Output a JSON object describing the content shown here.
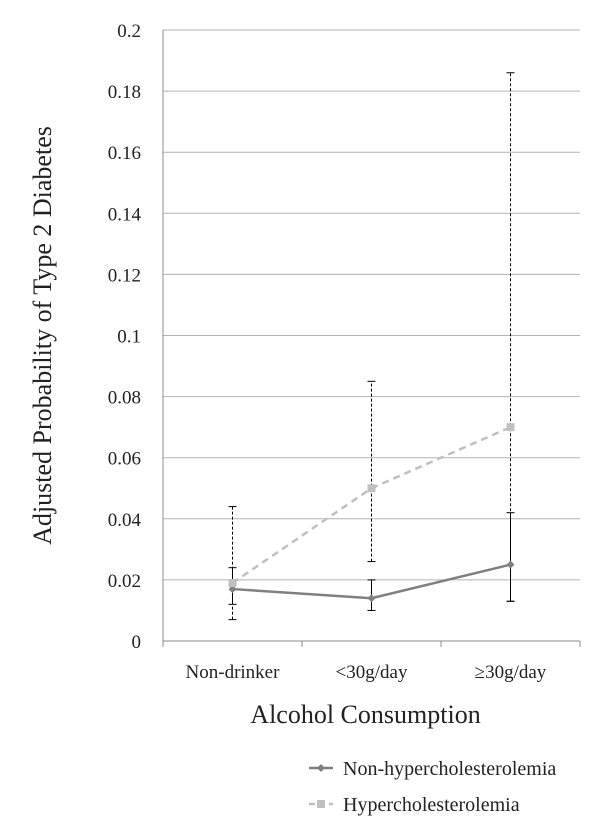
{
  "chart_data": {
    "type": "line",
    "title": "",
    "xlabel": "Alcohol Consumption",
    "ylabel": "Adjusted Probability of Type 2 Diabetes",
    "categories": [
      "Non-drinker",
      "<30g/day",
      "≥30g/day"
    ],
    "ylim": [
      0,
      0.2
    ],
    "yticks": [
      "0",
      "0.02",
      "0.04",
      "0.06",
      "0.08",
      "0.1",
      "0.12",
      "0.14",
      "0.16",
      "0.18",
      "0.2"
    ],
    "grid": "horizontal",
    "legend_position": "bottom-right",
    "series": [
      {
        "name": "Non-hypercholesterolemia",
        "values": [
          0.017,
          0.014,
          0.025
        ],
        "error_low": [
          0.012,
          0.01,
          0.013
        ],
        "error_high": [
          0.024,
          0.02,
          0.042
        ],
        "color": "#808080",
        "line_style": "solid",
        "marker": "diamond"
      },
      {
        "name": "Hypercholesterolemia",
        "values": [
          0.019,
          0.05,
          0.07
        ],
        "error_low": [
          0.007,
          0.026,
          0.013
        ],
        "error_high": [
          0.044,
          0.085,
          0.186
        ],
        "color": "#c0c0c0",
        "line_style": "dashed",
        "marker": "square"
      }
    ]
  }
}
